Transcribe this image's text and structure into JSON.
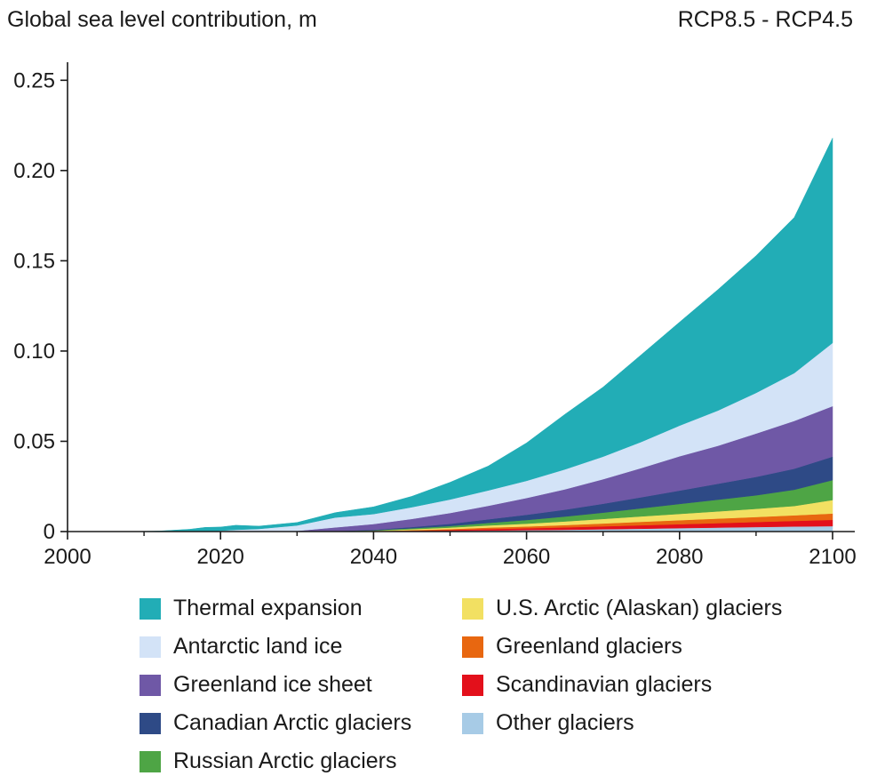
{
  "chart_data": {
    "type": "area",
    "title": "Global sea level contribution, m",
    "subtitle": "RCP8.5 - RCP4.5",
    "xlim": [
      2000,
      2100
    ],
    "ylim": [
      0,
      0.26
    ],
    "xticks": [
      2000,
      2020,
      2040,
      2060,
      2080,
      2100
    ],
    "yticks": [
      0,
      0.05,
      0.1,
      0.15,
      0.2,
      0.25
    ],
    "ytick_labels": [
      "0",
      "0.05",
      "0.10",
      "0.15",
      "0.20",
      "0.25"
    ],
    "grid": false,
    "legend_position": "bottom",
    "stacked": true,
    "x": [
      2008,
      2012,
      2016,
      2018,
      2020,
      2022,
      2025,
      2030,
      2035,
      2040,
      2045,
      2050,
      2055,
      2060,
      2065,
      2070,
      2075,
      2080,
      2085,
      2090,
      2095,
      2100
    ],
    "series": [
      {
        "name": "Other glaciers",
        "color": "#a7cbe6",
        "values": [
          0,
          0,
          0,
          0,
          0,
          0,
          0,
          0,
          0,
          0,
          0.0002,
          0.0004,
          0.0006,
          0.0008,
          0.001,
          0.0013,
          0.0016,
          0.0019,
          0.0022,
          0.0025,
          0.0028,
          0.003
        ]
      },
      {
        "name": "Scandinavian glaciers",
        "color": "#e3101b",
        "values": [
          0,
          0,
          0,
          0,
          0,
          0,
          0,
          0,
          0,
          0.0001,
          0.0003,
          0.0005,
          0.0008,
          0.001,
          0.0013,
          0.0016,
          0.0019,
          0.0022,
          0.0025,
          0.0028,
          0.0031,
          0.0035
        ]
      },
      {
        "name": "Greenland glaciers",
        "color": "#e86710",
        "values": [
          0,
          0,
          0,
          0,
          0,
          0,
          0,
          0,
          0,
          0.0001,
          0.0003,
          0.0005,
          0.0008,
          0.001,
          0.0013,
          0.0016,
          0.0019,
          0.0022,
          0.0025,
          0.0028,
          0.0031,
          0.0035
        ]
      },
      {
        "name": "U.S. Arctic (Alaskan) glaciers",
        "color": "#f2e062",
        "values": [
          0,
          0,
          0,
          0,
          0,
          0,
          0,
          0,
          0.0001,
          0.0003,
          0.0005,
          0.0008,
          0.0012,
          0.0016,
          0.002,
          0.0025,
          0.003,
          0.0035,
          0.004,
          0.0045,
          0.0052,
          0.0075
        ]
      },
      {
        "name": "Russian Arctic glaciers",
        "color": "#4ea545",
        "values": [
          0,
          0,
          0,
          0,
          0,
          0,
          0,
          0,
          0.0001,
          0.0002,
          0.0005,
          0.0009,
          0.0014,
          0.002,
          0.0027,
          0.0035,
          0.0045,
          0.0055,
          0.0065,
          0.0075,
          0.009,
          0.011
        ]
      },
      {
        "name": "Canadian Arctic glaciers",
        "color": "#2e4a86",
        "values": [
          0,
          0,
          0,
          0,
          0,
          0,
          0,
          0,
          0.0001,
          0.0003,
          0.0007,
          0.0012,
          0.002,
          0.0029,
          0.0038,
          0.0049,
          0.0061,
          0.0074,
          0.0088,
          0.0102,
          0.0116,
          0.013
        ]
      },
      {
        "name": "Greenland ice sheet",
        "color": "#6f58a6",
        "values": [
          0,
          0,
          0,
          0,
          0,
          0,
          0,
          0.0004,
          0.002,
          0.0032,
          0.0045,
          0.006,
          0.0075,
          0.0093,
          0.0113,
          0.0136,
          0.0162,
          0.019,
          0.021,
          0.024,
          0.0265,
          0.028
        ]
      },
      {
        "name": "Antarctic land ice",
        "color": "#d3e3f7",
        "values": [
          0,
          0,
          0,
          0,
          0.0005,
          0.001,
          0.0015,
          0.003,
          0.0055,
          0.0055,
          0.0065,
          0.0075,
          0.0085,
          0.0095,
          0.011,
          0.0125,
          0.0145,
          0.017,
          0.0195,
          0.0225,
          0.0265,
          0.035
        ]
      },
      {
        "name": "Thermal expansion",
        "color": "#22adb6",
        "values": [
          0,
          0.0003,
          0.0013,
          0.0023,
          0.002,
          0.0025,
          0.0015,
          0.0016,
          0.0027,
          0.004,
          0.006,
          0.0095,
          0.0135,
          0.021,
          0.0305,
          0.0385,
          0.0483,
          0.0573,
          0.067,
          0.076,
          0.0862,
          0.1135
        ]
      }
    ],
    "legend_order": [
      "Thermal expansion",
      "Antarctic land ice",
      "Greenland ice sheet",
      "Canadian Arctic glaciers",
      "Russian Arctic glaciers",
      "U.S. Arctic (Alaskan) glaciers",
      "Greenland glaciers",
      "Scandinavian glaciers",
      "Other glaciers"
    ]
  }
}
